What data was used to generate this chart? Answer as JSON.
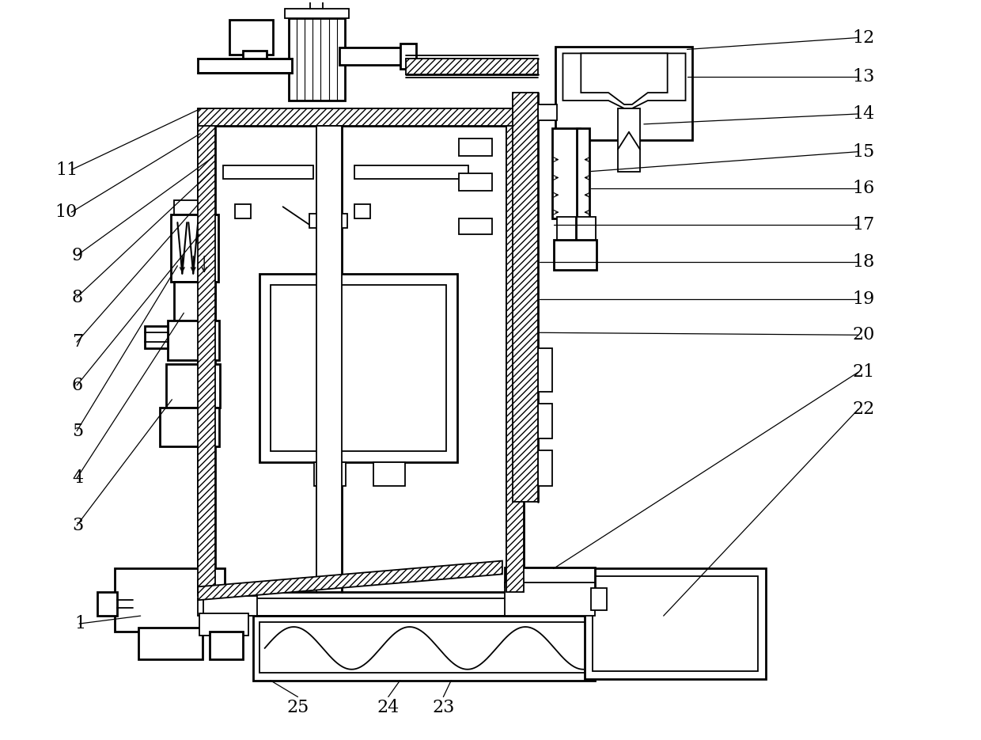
{
  "bg_color": "#ffffff",
  "lc": "#000000",
  "fig_width": 12.4,
  "fig_height": 9.35,
  "label_fontsize": 16
}
